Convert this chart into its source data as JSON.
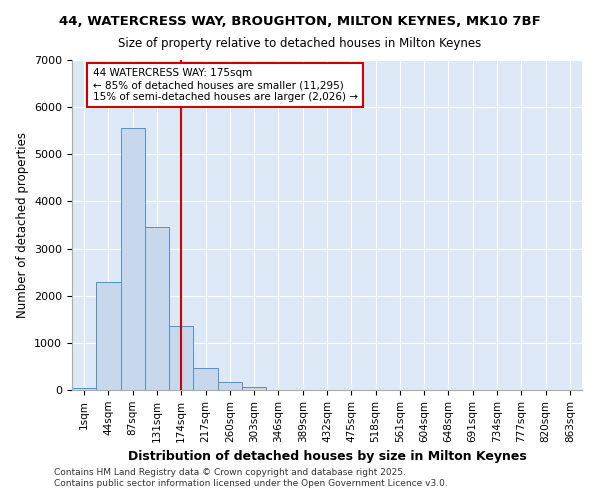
{
  "title_line1": "44, WATERCRESS WAY, BROUGHTON, MILTON KEYNES, MK10 7BF",
  "title_line2": "Size of property relative to detached houses in Milton Keynes",
  "xlabel": "Distribution of detached houses by size in Milton Keynes",
  "ylabel": "Number of detached properties",
  "fig_background_color": "#ffffff",
  "ax_background_color": "#dce8f5",
  "bar_color": "#c8d8ec",
  "bar_edge_color": "#5a8fc0",
  "grid_color": "#ffffff",
  "categories": [
    "1sqm",
    "44sqm",
    "87sqm",
    "131sqm",
    "174sqm",
    "217sqm",
    "260sqm",
    "303sqm",
    "346sqm",
    "389sqm",
    "432sqm",
    "475sqm",
    "518sqm",
    "561sqm",
    "604sqm",
    "648sqm",
    "691sqm",
    "734sqm",
    "777sqm",
    "820sqm",
    "863sqm"
  ],
  "values": [
    50,
    2300,
    5550,
    3450,
    1350,
    460,
    160,
    60,
    5,
    2,
    1,
    0,
    0,
    0,
    0,
    0,
    0,
    0,
    0,
    0,
    0
  ],
  "ylim": [
    0,
    7000
  ],
  "yticks": [
    0,
    1000,
    2000,
    3000,
    4000,
    5000,
    6000,
    7000
  ],
  "property_line_x": 4.0,
  "property_line_color": "#cc0000",
  "annotation_text": "44 WATERCRESS WAY: 175sqm\n← 85% of detached houses are smaller (11,295)\n15% of semi-detached houses are larger (2,026) →",
  "annotation_box_color": "#ffffff",
  "annotation_box_edge": "#cc0000",
  "footnote_line1": "Contains HM Land Registry data © Crown copyright and database right 2025.",
  "footnote_line2": "Contains public sector information licensed under the Open Government Licence v3.0."
}
